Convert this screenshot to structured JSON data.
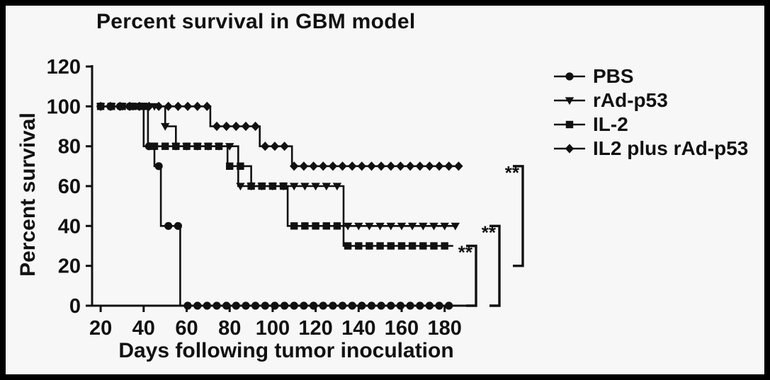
{
  "chart_data": {
    "type": "line",
    "title": "Percent survival in GBM model",
    "xlabel": "Days following tumor inoculation",
    "ylabel": "Percent survival",
    "xlim": [
      16,
      190
    ],
    "ylim": [
      0,
      120
    ],
    "xticks": [
      20,
      40,
      60,
      80,
      100,
      120,
      140,
      160,
      180
    ],
    "yticks": [
      0,
      20,
      40,
      60,
      80,
      100,
      120
    ],
    "grid": false,
    "legend_position": "right",
    "line_color": "#111111",
    "series": [
      {
        "name": "PBS",
        "marker": "circle",
        "marker_interval": 4.5,
        "end": 182,
        "steps": [
          [
            20,
            100
          ],
          [
            40,
            80
          ],
          [
            45,
            70
          ],
          [
            48,
            40
          ],
          [
            57,
            0
          ]
        ]
      },
      {
        "name": "rAd-p53",
        "marker": "triangle-down",
        "marker_interval": 5,
        "end": 186,
        "steps": [
          [
            20,
            100
          ],
          [
            50,
            90
          ],
          [
            55,
            80
          ],
          [
            84,
            60
          ],
          [
            133,
            40
          ]
        ]
      },
      {
        "name": "IL-2",
        "marker": "square",
        "marker_interval": 5,
        "end": 184,
        "steps": [
          [
            20,
            100
          ],
          [
            42,
            80
          ],
          [
            79,
            70
          ],
          [
            90,
            60
          ],
          [
            107,
            40
          ],
          [
            133,
            30
          ]
        ]
      },
      {
        "name": "IL2 plus rAd-p53",
        "marker": "diamond",
        "marker_interval": 4.5,
        "end": 188,
        "steps": [
          [
            20,
            100
          ],
          [
            71,
            90
          ],
          [
            94,
            80
          ],
          [
            109,
            70
          ]
        ]
      }
    ],
    "significance_brackets": [
      {
        "label": "**",
        "y_top": 30,
        "y_bottom": 0
      },
      {
        "label": "**",
        "y_top": 40,
        "y_bottom": 0
      },
      {
        "label": "**",
        "y_top": 70,
        "y_bottom": 20
      }
    ]
  }
}
